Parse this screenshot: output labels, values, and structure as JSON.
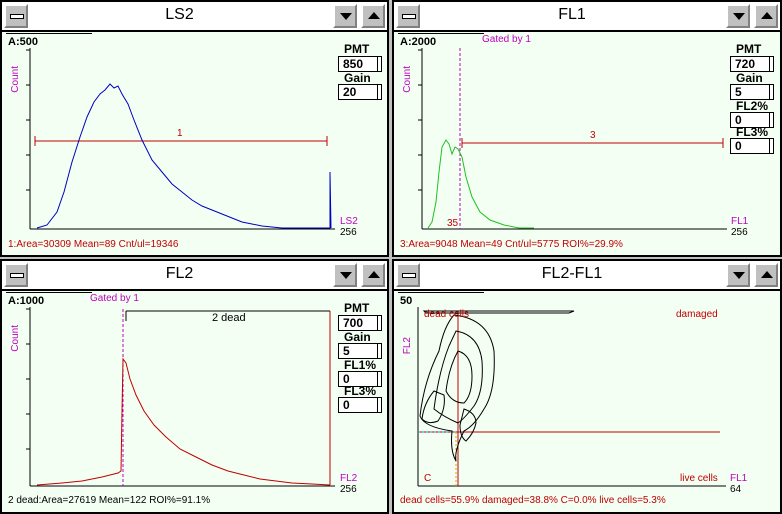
{
  "colors": {
    "blue": "#0000c0",
    "green": "#20c020",
    "red": "#c00000",
    "magenta": "#c000c0",
    "bg": "#f4fff4"
  },
  "windows": {
    "ls2": {
      "title": "LS2",
      "scale": "A:500",
      "ylabel": "Count",
      "xlabel": "LS2",
      "xmax": "256",
      "pmt_label": "PMT",
      "pmt_value": "850",
      "gain_label": "Gain",
      "gain_value": "20",
      "gate_label": "1",
      "stats": "1:Area=30309 Mean=89 Cnt/ul=19346"
    },
    "fl1": {
      "title": "FL1",
      "scale": "A:2000",
      "gated": "Gated by 1",
      "ylabel": "Count",
      "xlabel": "FL1",
      "xmax": "256",
      "pmt_label": "PMT",
      "pmt_value": "720",
      "gain_label": "Gain",
      "gain_value": "5",
      "comp1_label": "FL2%",
      "comp1_value": "0",
      "comp2_label": "FL3%",
      "comp2_value": "0",
      "gate_label": "3",
      "marker": "35",
      "stats": "3:Area=9048 Mean=49 Cnt/ul=5775 ROI%=29.9%"
    },
    "fl2": {
      "title": "FL2",
      "scale": "A:1000",
      "gated": "Gated by 1",
      "ylabel": "Count",
      "xlabel": "FL2",
      "xmax": "256",
      "pmt_label": "PMT",
      "pmt_value": "700",
      "gain_label": "Gain",
      "gain_value": "5",
      "comp1_label": "FL1%",
      "comp1_value": "0",
      "comp2_label": "FL3%",
      "comp2_value": "0",
      "gate_label": "2 dead",
      "stats": "2 dead:Area=27619 Mean=122 ROI%=91.1%"
    },
    "fl2fl1": {
      "title": "FL2-FL1",
      "scale": "50",
      "ylabel": "FL2",
      "xlabel": "FL1",
      "xmax": "64",
      "q_dead": "dead cells",
      "q_damaged": "damaged",
      "q_c": "C",
      "q_live": "live cells",
      "stats": "dead cells=55.9% damaged=38.8% C=0.0% live cells=5.3%"
    }
  }
}
